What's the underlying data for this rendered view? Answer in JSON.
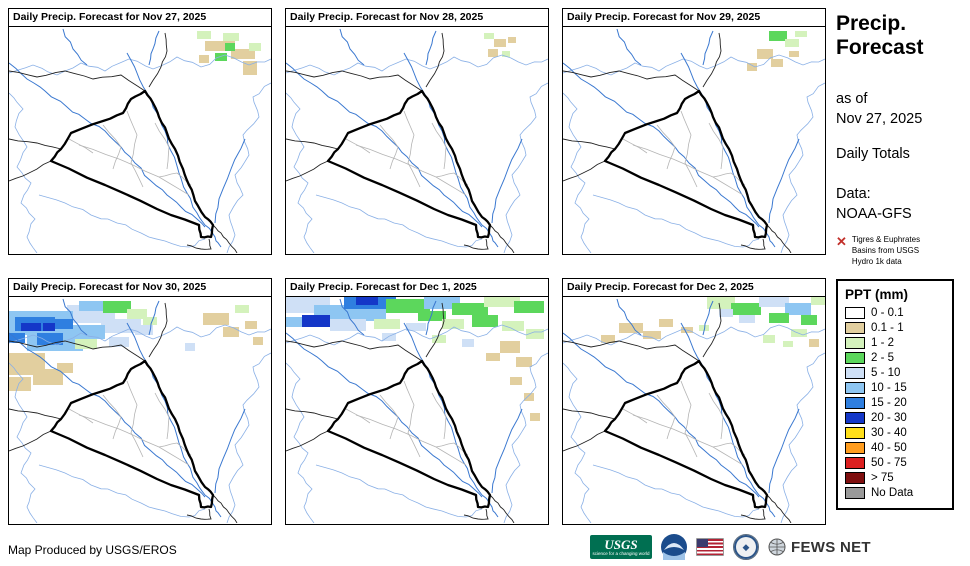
{
  "panels": [
    {
      "title": "Daily Precip. Forecast for Nov 27, 2025",
      "patches": [
        [
          188,
          4,
          14,
          8,
          "lg"
        ],
        [
          214,
          6,
          16,
          8,
          "lg"
        ],
        [
          196,
          14,
          30,
          10,
          "t"
        ],
        [
          222,
          22,
          24,
          10,
          "t"
        ],
        [
          206,
          26,
          12,
          8,
          "g"
        ],
        [
          234,
          34,
          14,
          14,
          "t"
        ],
        [
          216,
          16,
          10,
          8,
          "g"
        ],
        [
          240,
          16,
          12,
          8,
          "lg"
        ],
        [
          190,
          28,
          10,
          8,
          "t"
        ]
      ]
    },
    {
      "title": "Daily Precip. Forecast for Nov 28, 2025",
      "patches": [
        [
          198,
          6,
          10,
          6,
          "lg"
        ],
        [
          208,
          12,
          12,
          8,
          "t"
        ],
        [
          202,
          22,
          10,
          8,
          "t"
        ],
        [
          216,
          24,
          8,
          6,
          "lg"
        ],
        [
          222,
          10,
          8,
          6,
          "t"
        ]
      ]
    },
    {
      "title": "Daily Precip. Forecast for Nov 29, 2025",
      "patches": [
        [
          206,
          4,
          18,
          10,
          "g"
        ],
        [
          222,
          12,
          14,
          8,
          "lg"
        ],
        [
          194,
          22,
          16,
          10,
          "t"
        ],
        [
          208,
          32,
          12,
          8,
          "t"
        ],
        [
          232,
          4,
          12,
          6,
          "lg"
        ],
        [
          184,
          36,
          10,
          8,
          "t"
        ],
        [
          226,
          24,
          10,
          6,
          "t"
        ]
      ]
    },
    {
      "title": "Daily Precip. Forecast for Nov 30, 2025",
      "patches": [
        [
          0,
          56,
          36,
          22,
          "t"
        ],
        [
          24,
          72,
          30,
          16,
          "t"
        ],
        [
          0,
          80,
          22,
          14,
          "t"
        ],
        [
          48,
          66,
          16,
          10,
          "t"
        ],
        [
          58,
          8,
          48,
          18,
          "pb"
        ],
        [
          92,
          22,
          40,
          14,
          "pb"
        ],
        [
          126,
          28,
          18,
          10,
          "pb"
        ],
        [
          100,
          40,
          20,
          10,
          "pb"
        ],
        [
          0,
          14,
          64,
          24,
          "lb"
        ],
        [
          18,
          34,
          56,
          20,
          "lb"
        ],
        [
          64,
          28,
          32,
          14,
          "lb"
        ],
        [
          70,
          4,
          24,
          10,
          "lb"
        ],
        [
          6,
          20,
          40,
          14,
          "mb"
        ],
        [
          28,
          36,
          26,
          12,
          "mb"
        ],
        [
          0,
          36,
          16,
          10,
          "mb"
        ],
        [
          46,
          22,
          18,
          10,
          "mb"
        ],
        [
          12,
          26,
          20,
          8,
          "db"
        ],
        [
          34,
          26,
          12,
          8,
          "db"
        ],
        [
          94,
          4,
          28,
          12,
          "g"
        ],
        [
          118,
          12,
          20,
          10,
          "lg"
        ],
        [
          66,
          42,
          22,
          10,
          "lg"
        ],
        [
          134,
          20,
          14,
          8,
          "lg"
        ],
        [
          194,
          16,
          26,
          12,
          "t"
        ],
        [
          214,
          30,
          16,
          10,
          "t"
        ],
        [
          226,
          8,
          14,
          8,
          "lg"
        ],
        [
          236,
          24,
          12,
          8,
          "t"
        ],
        [
          244,
          40,
          10,
          8,
          "t"
        ],
        [
          176,
          46,
          10,
          8,
          "pb"
        ]
      ]
    },
    {
      "title": "Daily Precip. Forecast for Dec 1, 2025",
      "patches": [
        [
          0,
          0,
          44,
          16,
          "pb"
        ],
        [
          28,
          8,
          44,
          14,
          "lb"
        ],
        [
          58,
          0,
          52,
          12,
          "mb"
        ],
        [
          64,
          12,
          36,
          12,
          "lb"
        ],
        [
          100,
          2,
          44,
          14,
          "g"
        ],
        [
          138,
          0,
          36,
          12,
          "lb"
        ],
        [
          132,
          14,
          28,
          10,
          "g"
        ],
        [
          166,
          6,
          36,
          12,
          "g"
        ],
        [
          198,
          0,
          36,
          10,
          "lg"
        ],
        [
          228,
          4,
          30,
          12,
          "g"
        ],
        [
          16,
          18,
          28,
          12,
          "db"
        ],
        [
          44,
          22,
          36,
          12,
          "pb"
        ],
        [
          88,
          22,
          26,
          10,
          "lg"
        ],
        [
          120,
          26,
          20,
          8,
          "pb"
        ],
        [
          156,
          22,
          22,
          10,
          "lg"
        ],
        [
          186,
          18,
          26,
          12,
          "g"
        ],
        [
          216,
          24,
          22,
          10,
          "lg"
        ],
        [
          240,
          32,
          18,
          10,
          "lg"
        ],
        [
          0,
          20,
          16,
          10,
          "lb"
        ],
        [
          70,
          0,
          22,
          8,
          "db"
        ],
        [
          214,
          44,
          20,
          12,
          "t"
        ],
        [
          230,
          60,
          16,
          10,
          "t"
        ],
        [
          200,
          56,
          14,
          8,
          "t"
        ],
        [
          224,
          80,
          12,
          8,
          "t"
        ],
        [
          238,
          96,
          10,
          8,
          "t"
        ],
        [
          244,
          116,
          10,
          8,
          "t"
        ],
        [
          146,
          38,
          14,
          8,
          "lg"
        ],
        [
          176,
          42,
          12,
          8,
          "pb"
        ],
        [
          96,
          36,
          14,
          8,
          "pb"
        ]
      ]
    },
    {
      "title": "Daily Precip. Forecast for Dec 2, 2025",
      "patches": [
        [
          144,
          0,
          28,
          12,
          "lg"
        ],
        [
          168,
          6,
          30,
          12,
          "g"
        ],
        [
          196,
          0,
          30,
          10,
          "pb"
        ],
        [
          222,
          6,
          26,
          12,
          "lb"
        ],
        [
          206,
          16,
          20,
          10,
          "g"
        ],
        [
          238,
          18,
          16,
          10,
          "g"
        ],
        [
          176,
          18,
          16,
          8,
          "pb"
        ],
        [
          228,
          32,
          16,
          8,
          "lg"
        ],
        [
          156,
          12,
          14,
          8,
          "pb"
        ],
        [
          248,
          0,
          14,
          8,
          "lg"
        ],
        [
          56,
          26,
          24,
          10,
          "t"
        ],
        [
          80,
          34,
          18,
          8,
          "t"
        ],
        [
          96,
          22,
          14,
          8,
          "t"
        ],
        [
          38,
          38,
          14,
          8,
          "t"
        ],
        [
          118,
          30,
          12,
          6,
          "t"
        ],
        [
          136,
          28,
          10,
          6,
          "lg"
        ],
        [
          200,
          38,
          12,
          8,
          "lg"
        ],
        [
          246,
          42,
          10,
          8,
          "t"
        ],
        [
          220,
          44,
          10,
          6,
          "lg"
        ]
      ]
    }
  ],
  "palette": {
    "t": "#e2cf9f",
    "lg": "#d4f2bc",
    "g": "#5cd75c",
    "pb": "#cfe0f6",
    "lb": "#8ec6f2",
    "mb": "#2f7fe0",
    "db": "#1437c8",
    "y": "#ffdf1a",
    "o": "#ff9d1f",
    "r": "#dc2020",
    "dr": "#7e0e0e",
    "nd": "#9a9a9a",
    "w": "#ffffff"
  },
  "sidebar": {
    "title_line1": "Precip.",
    "title_line2": "Forecast",
    "asof_label": "as of",
    "asof_date": "Nov 27, 2025",
    "totals": "Daily Totals",
    "data_label": "Data:",
    "data_source": "NOAA-GFS",
    "basin_note": "Tigres & Euphrates Basins from USGS Hydro 1k data",
    "legend": {
      "title": "PPT (mm)",
      "items": [
        {
          "label": "0 - 0.1",
          "color": "#ffffff"
        },
        {
          "label": "0.1 - 1",
          "color": "#e2cf9f"
        },
        {
          "label": "1 - 2",
          "color": "#d4f2bc"
        },
        {
          "label": "2 - 5",
          "color": "#5cd75c"
        },
        {
          "label": "5 - 10",
          "color": "#cfe0f6"
        },
        {
          "label": "10 - 15",
          "color": "#8ec6f2"
        },
        {
          "label": "15 - 20",
          "color": "#2f7fe0"
        },
        {
          "label": "20 - 30",
          "color": "#1437c8"
        },
        {
          "label": "30 - 40",
          "color": "#ffdf1a"
        },
        {
          "label": "40 - 50",
          "color": "#ff9d1f"
        },
        {
          "label": "50 - 75",
          "color": "#dc2020"
        },
        {
          "label": "> 75",
          "color": "#7e0e0e"
        },
        {
          "label": "No Data",
          "color": "#9a9a9a"
        }
      ]
    }
  },
  "footer": {
    "credit": "Map Produced by USGS/EROS",
    "usgs_label": "USGS",
    "usgs_tagline": "science for a changing world",
    "fewsnet_label": "FEWS NET"
  }
}
